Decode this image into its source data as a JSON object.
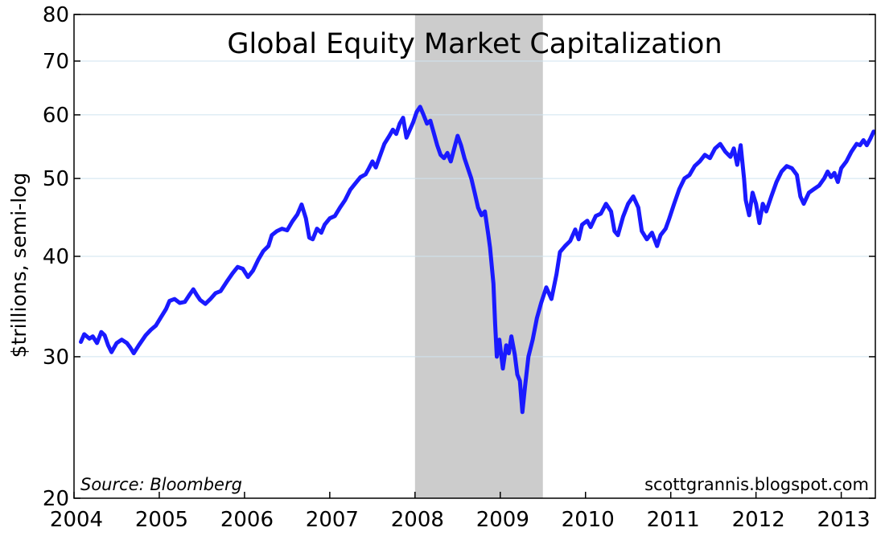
{
  "chart_data": {
    "type": "line",
    "title": "Global Equity Market Capitalization",
    "ylabel": "$trillions, semi-log",
    "xlabel": "",
    "yscale": "log",
    "ylim": [
      20,
      80
    ],
    "xlim": [
      2004,
      2013.4
    ],
    "y_ticks": [
      20,
      30,
      40,
      50,
      60,
      70,
      80
    ],
    "x_ticks": [
      2004,
      2005,
      2006,
      2007,
      2008,
      2009,
      2010,
      2011,
      2012,
      2013
    ],
    "grid": true,
    "recession_shading": {
      "start": 2008.0,
      "end": 2009.5,
      "color": "#cccccc"
    },
    "annotations": {
      "source": "Source: Bloomberg",
      "credit": "scottgrannis.blogspot.com"
    },
    "series": [
      {
        "color": "#1a1aff",
        "points": [
          [
            2004.08,
            31.3
          ],
          [
            2004.12,
            32.0
          ],
          [
            2004.18,
            31.6
          ],
          [
            2004.22,
            31.8
          ],
          [
            2004.27,
            31.2
          ],
          [
            2004.32,
            32.2
          ],
          [
            2004.36,
            31.9
          ],
          [
            2004.4,
            31.0
          ],
          [
            2004.44,
            30.4
          ],
          [
            2004.5,
            31.2
          ],
          [
            2004.56,
            31.5
          ],
          [
            2004.62,
            31.2
          ],
          [
            2004.66,
            30.8
          ],
          [
            2004.7,
            30.3
          ],
          [
            2004.76,
            31.0
          ],
          [
            2004.84,
            31.9
          ],
          [
            2004.9,
            32.4
          ],
          [
            2004.96,
            32.8
          ],
          [
            2005.02,
            33.6
          ],
          [
            2005.08,
            34.4
          ],
          [
            2005.12,
            35.2
          ],
          [
            2005.18,
            35.4
          ],
          [
            2005.24,
            35.0
          ],
          [
            2005.3,
            35.1
          ],
          [
            2005.36,
            35.9
          ],
          [
            2005.4,
            36.4
          ],
          [
            2005.44,
            35.8
          ],
          [
            2005.48,
            35.3
          ],
          [
            2005.54,
            34.9
          ],
          [
            2005.6,
            35.4
          ],
          [
            2005.66,
            36.0
          ],
          [
            2005.72,
            36.2
          ],
          [
            2005.8,
            37.3
          ],
          [
            2005.86,
            38.1
          ],
          [
            2005.92,
            38.8
          ],
          [
            2005.98,
            38.6
          ],
          [
            2006.04,
            37.7
          ],
          [
            2006.1,
            38.4
          ],
          [
            2006.16,
            39.6
          ],
          [
            2006.22,
            40.6
          ],
          [
            2006.28,
            41.2
          ],
          [
            2006.32,
            42.5
          ],
          [
            2006.38,
            43.0
          ],
          [
            2006.44,
            43.3
          ],
          [
            2006.5,
            43.1
          ],
          [
            2006.56,
            44.2
          ],
          [
            2006.62,
            45.1
          ],
          [
            2006.67,
            46.4
          ],
          [
            2006.72,
            44.6
          ],
          [
            2006.76,
            42.2
          ],
          [
            2006.8,
            42.0
          ],
          [
            2006.85,
            43.3
          ],
          [
            2006.9,
            42.8
          ],
          [
            2006.94,
            43.8
          ],
          [
            2007.0,
            44.6
          ],
          [
            2007.06,
            44.9
          ],
          [
            2007.12,
            46.0
          ],
          [
            2007.18,
            47.0
          ],
          [
            2007.24,
            48.4
          ],
          [
            2007.3,
            49.3
          ],
          [
            2007.36,
            50.2
          ],
          [
            2007.42,
            50.6
          ],
          [
            2007.46,
            51.5
          ],
          [
            2007.5,
            52.5
          ],
          [
            2007.54,
            51.6
          ],
          [
            2007.58,
            53.0
          ],
          [
            2007.64,
            55.2
          ],
          [
            2007.7,
            56.5
          ],
          [
            2007.74,
            57.5
          ],
          [
            2007.78,
            56.8
          ],
          [
            2007.82,
            58.5
          ],
          [
            2007.86,
            59.5
          ],
          [
            2007.9,
            56.2
          ],
          [
            2007.94,
            57.5
          ],
          [
            2007.98,
            58.8
          ],
          [
            2008.02,
            60.5
          ],
          [
            2008.06,
            61.4
          ],
          [
            2008.1,
            60.0
          ],
          [
            2008.14,
            58.5
          ],
          [
            2008.18,
            59.0
          ],
          [
            2008.22,
            57.0
          ],
          [
            2008.26,
            55.0
          ],
          [
            2008.3,
            53.5
          ],
          [
            2008.34,
            53.0
          ],
          [
            2008.38,
            53.8
          ],
          [
            2008.42,
            52.5
          ],
          [
            2008.46,
            54.5
          ],
          [
            2008.5,
            56.5
          ],
          [
            2008.54,
            55.0
          ],
          [
            2008.58,
            53.0
          ],
          [
            2008.62,
            51.5
          ],
          [
            2008.66,
            50.0
          ],
          [
            2008.7,
            48.0
          ],
          [
            2008.74,
            46.0
          ],
          [
            2008.78,
            45.0
          ],
          [
            2008.82,
            45.5
          ],
          [
            2008.86,
            42.5
          ],
          [
            2008.88,
            41.0
          ],
          [
            2008.92,
            37.0
          ],
          [
            2008.94,
            33.0
          ],
          [
            2008.96,
            30.0
          ],
          [
            2008.99,
            31.5
          ],
          [
            2009.03,
            29.0
          ],
          [
            2009.07,
            31.0
          ],
          [
            2009.1,
            30.3
          ],
          [
            2009.13,
            31.8
          ],
          [
            2009.17,
            30.2
          ],
          [
            2009.2,
            28.5
          ],
          [
            2009.23,
            28.0
          ],
          [
            2009.26,
            25.6
          ],
          [
            2009.29,
            27.5
          ],
          [
            2009.33,
            30.0
          ],
          [
            2009.38,
            31.5
          ],
          [
            2009.43,
            33.5
          ],
          [
            2009.48,
            35.0
          ],
          [
            2009.54,
            36.6
          ],
          [
            2009.6,
            35.4
          ],
          [
            2009.66,
            38.0
          ],
          [
            2009.7,
            40.5
          ],
          [
            2009.76,
            41.2
          ],
          [
            2009.82,
            41.8
          ],
          [
            2009.88,
            43.2
          ],
          [
            2009.92,
            42.0
          ],
          [
            2009.96,
            43.8
          ],
          [
            2010.02,
            44.3
          ],
          [
            2010.06,
            43.5
          ],
          [
            2010.12,
            44.9
          ],
          [
            2010.18,
            45.2
          ],
          [
            2010.24,
            46.5
          ],
          [
            2010.3,
            45.5
          ],
          [
            2010.34,
            43.0
          ],
          [
            2010.38,
            42.5
          ],
          [
            2010.44,
            44.8
          ],
          [
            2010.5,
            46.5
          ],
          [
            2010.56,
            47.5
          ],
          [
            2010.62,
            46.0
          ],
          [
            2010.66,
            43.0
          ],
          [
            2010.72,
            42.0
          ],
          [
            2010.78,
            42.8
          ],
          [
            2010.84,
            41.2
          ],
          [
            2010.88,
            42.5
          ],
          [
            2010.94,
            43.3
          ],
          [
            2010.98,
            44.5
          ],
          [
            2011.04,
            46.5
          ],
          [
            2011.1,
            48.5
          ],
          [
            2011.16,
            50.0
          ],
          [
            2011.22,
            50.5
          ],
          [
            2011.28,
            51.8
          ],
          [
            2011.34,
            52.5
          ],
          [
            2011.4,
            53.5
          ],
          [
            2011.46,
            53.0
          ],
          [
            2011.52,
            54.5
          ],
          [
            2011.58,
            55.2
          ],
          [
            2011.64,
            54.0
          ],
          [
            2011.7,
            53.2
          ],
          [
            2011.74,
            54.5
          ],
          [
            2011.78,
            52.0
          ],
          [
            2011.82,
            55.0
          ],
          [
            2011.86,
            50.0
          ],
          [
            2011.88,
            47.0
          ],
          [
            2011.92,
            45.0
          ],
          [
            2011.96,
            48.0
          ],
          [
            2012.0,
            46.5
          ],
          [
            2012.04,
            44.0
          ],
          [
            2012.08,
            46.5
          ],
          [
            2012.12,
            45.5
          ],
          [
            2012.18,
            47.5
          ],
          [
            2012.24,
            49.5
          ],
          [
            2012.3,
            51.0
          ],
          [
            2012.36,
            51.8
          ],
          [
            2012.42,
            51.5
          ],
          [
            2012.48,
            50.5
          ],
          [
            2012.52,
            47.5
          ],
          [
            2012.56,
            46.5
          ],
          [
            2012.62,
            48.0
          ],
          [
            2012.68,
            48.5
          ],
          [
            2012.74,
            49.0
          ],
          [
            2012.8,
            50.0
          ],
          [
            2012.84,
            51.0
          ],
          [
            2012.88,
            50.2
          ],
          [
            2012.92,
            50.8
          ],
          [
            2012.96,
            49.5
          ],
          [
            2013.0,
            51.5
          ],
          [
            2013.06,
            52.5
          ],
          [
            2013.12,
            54.0
          ],
          [
            2013.18,
            55.2
          ],
          [
            2013.22,
            55.0
          ],
          [
            2013.26,
            55.8
          ],
          [
            2013.3,
            55.0
          ],
          [
            2013.34,
            56.0
          ],
          [
            2013.38,
            57.2
          ]
        ]
      }
    ]
  }
}
